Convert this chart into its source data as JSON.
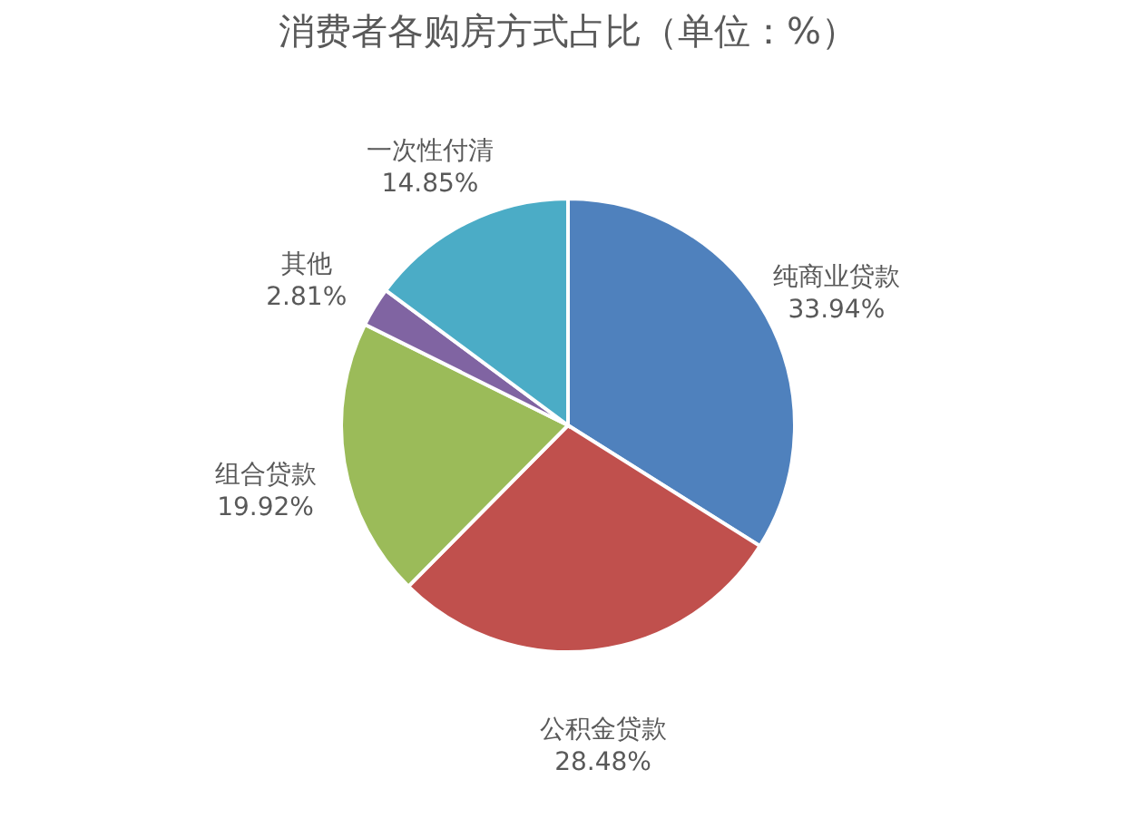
{
  "chart_data": {
    "type": "pie",
    "title": "消费者各购房方式占比（单位：%）",
    "categories": [
      "纯商业贷款",
      "公积金贷款",
      "组合贷款",
      "其他",
      "一次性付清"
    ],
    "values": [
      33.94,
      28.48,
      19.92,
      2.81,
      14.85
    ],
    "colors": [
      "#4f81bd",
      "#c0504d",
      "#9bbb59",
      "#8064a2",
      "#4bacc6"
    ],
    "value_labels": [
      "33.94%",
      "28.48%",
      "19.92%",
      "2.81%",
      "14.85%"
    ],
    "legend": false
  }
}
